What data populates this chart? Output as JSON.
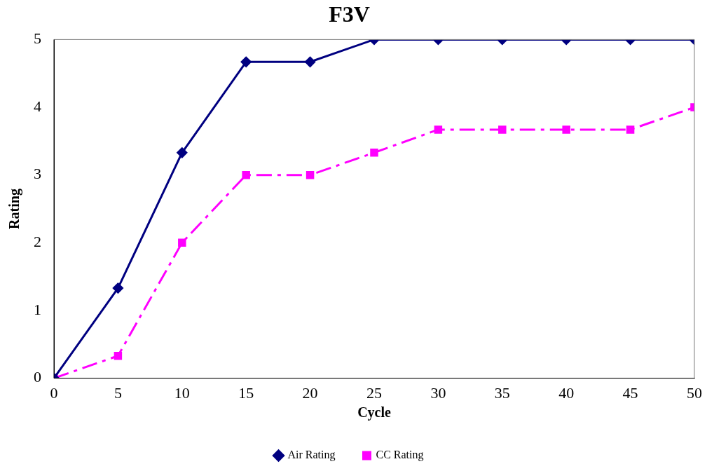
{
  "chart_data": {
    "type": "line",
    "title": "F3V",
    "xlabel": "Cycle",
    "ylabel": "Rating",
    "x": [
      0,
      5,
      10,
      15,
      20,
      25,
      30,
      35,
      40,
      45,
      50
    ],
    "series": [
      {
        "name": "Air Rating",
        "color": "#000080",
        "marker": "diamond",
        "line_style": "solid",
        "values": [
          0,
          1.33,
          3.33,
          4.67,
          4.67,
          5,
          5,
          5,
          5,
          5,
          5
        ]
      },
      {
        "name": "CC Rating",
        "color": "#ff00ff",
        "marker": "square",
        "line_style": "dashed",
        "values": [
          0,
          0.33,
          2,
          3,
          3,
          3.33,
          3.67,
          3.67,
          3.67,
          3.67,
          4
        ]
      }
    ],
    "xlim": [
      0,
      50
    ],
    "xticks": [
      0,
      5,
      10,
      15,
      20,
      25,
      30,
      35,
      40,
      45,
      50
    ],
    "ylim": [
      0,
      5
    ],
    "yticks": [
      0,
      1,
      2,
      3,
      4,
      5
    ],
    "grid": false,
    "legend": "bottom"
  }
}
